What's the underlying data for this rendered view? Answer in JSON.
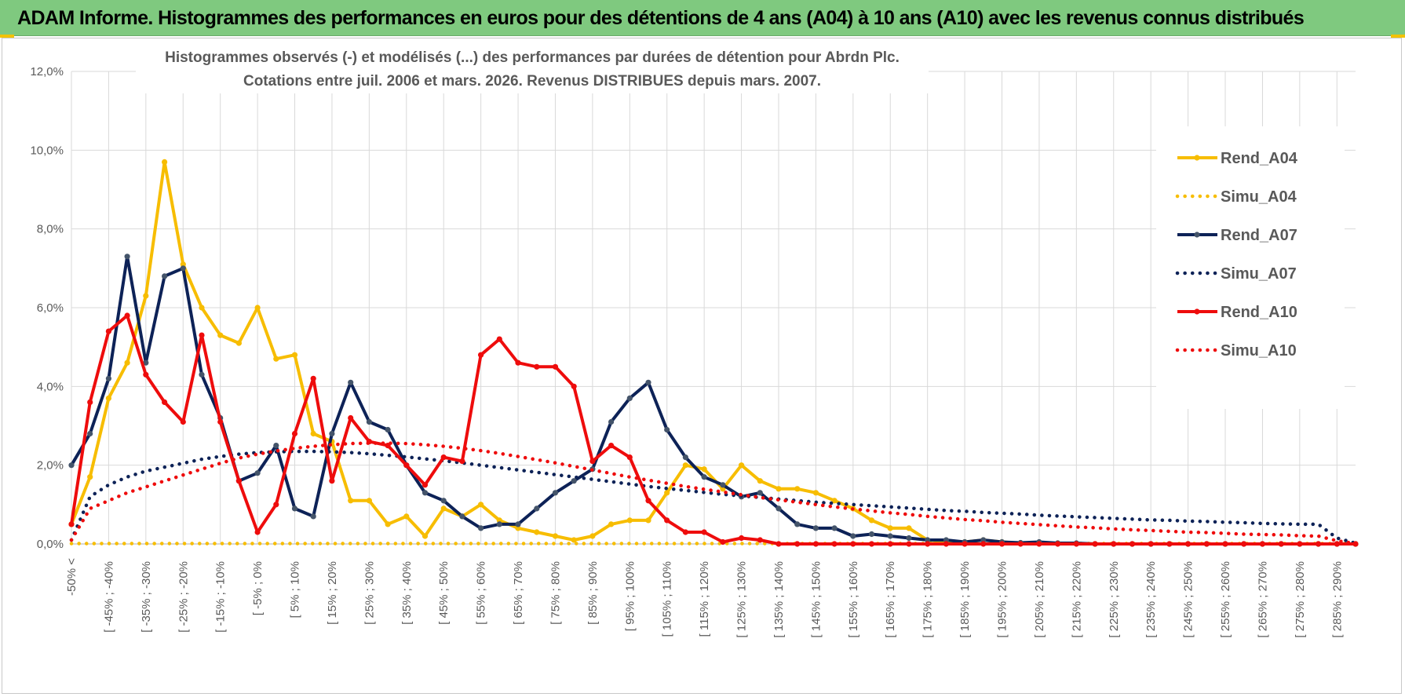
{
  "banner": {
    "title": "ADAM Informe. Histogrammes des performances en euros pour des détentions de 4 ans (A04) à 10 ans (A10) avec les revenus connus distribués"
  },
  "colors": {
    "banner_bg": "#7fc97f",
    "yellow": "#f7bd00",
    "navy": "#0d2257",
    "red": "#ee0c0c",
    "grid": "#d9d9d9",
    "label": "#595959"
  },
  "chart_data": {
    "type": "line",
    "title_lines": [
      "Histogrammes observés (-) et modélisés (...) des performances par durées de détention pour Abrdn Plc.",
      "Cotations entre juil. 2006 et mars. 2026. Revenus DISTRIBUES depuis mars. 2007."
    ],
    "xlabel": "",
    "ylabel": "",
    "ylim": [
      0,
      0.12
    ],
    "y_ticks": [
      "0,0%",
      "2,0%",
      "4,0%",
      "6,0%",
      "8,0%",
      "10,0%",
      "12,0%"
    ],
    "x_tick_labels": [
      "-50% <",
      "[ -45% ; -40%",
      "[ -35% ; -30%",
      "[ -25% ; -20%",
      "[ -15% ; -10%",
      "[ -5% ; 0%",
      "[ 5% ; 10%",
      "[ 15% ; 20%",
      "[ 25% ; 30%",
      "[ 35% ; 40%",
      "[ 45% ; 50%",
      "[ 55% ; 60%",
      "[ 65% ; 70%",
      "[ 75% ; 80%",
      "[ 85% ; 90%",
      "[ 95% ; 100%",
      "[ 105% ; 110%",
      "[ 115% ; 120%",
      "[ 125% ; 130%",
      "[ 135% ; 140%",
      "[ 145% ; 150%",
      "[ 155% ; 160%",
      "[ 165% ; 170%",
      "[ 175% ; 180%",
      "[ 185% ; 190%",
      "[ 195% ; 200%",
      "[ 205% ; 210%",
      "[ 215% ; 220%",
      "[ 225% ; 230%",
      "[ 235% ; 240%",
      "[ 245% ; 250%",
      "[ 255% ; 260%",
      "[ 265% ; 270%",
      "[ 275% ; 280%",
      "[ 285% ; 290%"
    ],
    "category_count": 70,
    "legend_position": "right",
    "series": [
      {
        "name": "Rend_A04",
        "style": "solid",
        "color": "#f7bd00",
        "values": [
          0.005,
          0.017,
          0.037,
          0.046,
          0.063,
          0.097,
          0.071,
          0.06,
          0.053,
          0.051,
          0.06,
          0.047,
          0.048,
          0.028,
          0.026,
          0.011,
          0.011,
          0.005,
          0.007,
          0.002,
          0.009,
          0.007,
          0.01,
          0.006,
          0.004,
          0.003,
          0.002,
          0.001,
          0.002,
          0.005,
          0.006,
          0.006,
          0.013,
          0.02,
          0.019,
          0.014,
          0.02,
          0.016,
          0.014,
          0.014,
          0.013,
          0.011,
          0.009,
          0.006,
          0.004,
          0.004,
          0.001,
          0.0005,
          0.0005,
          0.001,
          0.0005,
          0.0002,
          0.0002,
          0.0002,
          0.0001,
          0,
          0,
          0,
          0,
          0,
          0,
          0,
          0,
          0,
          0,
          0,
          0,
          0,
          0,
          0
        ]
      },
      {
        "name": "Simu_A04",
        "style": "dotted",
        "color": "#f7bd00",
        "values": [
          0.0001,
          0.0001,
          0.0001,
          0.0001,
          0.0001,
          0.0001,
          0.0001,
          0.0001,
          0.0001,
          0.0001,
          0.0001,
          0.0001,
          0.0001,
          0.0001,
          0.0001,
          0.0001,
          0.0001,
          0.0001,
          0.0001,
          0.0001,
          0.0001,
          0.0001,
          0.0001,
          0.0001,
          0.0001,
          0.0001,
          0.0001,
          0.0001,
          0.0001,
          0.0001,
          0.0001,
          0.0001,
          0.0001,
          0.0001,
          0.0001,
          0.0001,
          0.0001,
          0.0001,
          0.0001,
          0.0001,
          0.0001,
          0.0001,
          0.0001,
          0.0001,
          0.0001,
          0.0001,
          0.0001,
          0.0001,
          0.0001,
          0.0001,
          0.0001,
          0.0001,
          0.0001,
          0.0001,
          0.0001,
          0.0001,
          0.0001,
          0.0001,
          0.0001,
          0.0001,
          0.0001,
          0.0001,
          0.0001,
          0.0001,
          0.0001,
          0.0001,
          0.0001,
          0.0001,
          0.0001,
          0.0001
        ]
      },
      {
        "name": "Rend_A07",
        "style": "solid",
        "color": "#0d2257",
        "values": [
          0.02,
          0.028,
          0.042,
          0.073,
          0.046,
          0.068,
          0.07,
          0.043,
          0.032,
          0.016,
          0.018,
          0.025,
          0.009,
          0.007,
          0.028,
          0.041,
          0.031,
          0.029,
          0.02,
          0.013,
          0.011,
          0.007,
          0.004,
          0.005,
          0.005,
          0.009,
          0.013,
          0.016,
          0.019,
          0.031,
          0.037,
          0.041,
          0.029,
          0.022,
          0.017,
          0.015,
          0.012,
          0.013,
          0.009,
          0.005,
          0.004,
          0.004,
          0.002,
          0.0025,
          0.002,
          0.0015,
          0.001,
          0.001,
          0.0005,
          0.001,
          0.0005,
          0.0003,
          0.0005,
          0.0002,
          0.0002,
          0,
          0,
          0,
          0,
          0,
          0,
          0,
          0,
          0,
          0,
          0,
          0,
          0,
          0,
          0
        ]
      },
      {
        "name": "Simu_A07",
        "style": "dotted",
        "color": "#0d2257",
        "values": [
          0.001,
          0.012,
          0.015,
          0.017,
          0.0185,
          0.0195,
          0.0205,
          0.0215,
          0.0222,
          0.0228,
          0.0232,
          0.0234,
          0.0235,
          0.0235,
          0.0234,
          0.0232,
          0.0229,
          0.0225,
          0.0221,
          0.0216,
          0.0211,
          0.0206,
          0.02,
          0.0194,
          0.0188,
          0.0182,
          0.0176,
          0.017,
          0.0164,
          0.0158,
          0.0152,
          0.0146,
          0.0141,
          0.0136,
          0.0131,
          0.0126,
          0.0122,
          0.0118,
          0.0114,
          0.011,
          0.0106,
          0.0103,
          0.01,
          0.0097,
          0.0094,
          0.0091,
          0.0088,
          0.0085,
          0.0083,
          0.008,
          0.0078,
          0.0076,
          0.0073,
          0.0071,
          0.0069,
          0.0067,
          0.0065,
          0.0063,
          0.0061,
          0.006,
          0.0058,
          0.0057,
          0.0055,
          0.0054,
          0.0052,
          0.0051,
          0.005,
          0.005,
          0.0015,
          0.0002
        ]
      },
      {
        "name": "Rend_A10",
        "style": "solid",
        "color": "#ee0c0c",
        "values": [
          0.005,
          0.036,
          0.054,
          0.058,
          0.043,
          0.036,
          0.031,
          0.053,
          0.031,
          0.016,
          0.003,
          0.01,
          0.028,
          0.042,
          0.016,
          0.032,
          0.026,
          0.025,
          0.02,
          0.015,
          0.022,
          0.021,
          0.048,
          0.052,
          0.046,
          0.045,
          0.045,
          0.04,
          0.021,
          0.025,
          0.022,
          0.011,
          0.006,
          0.003,
          0.003,
          0.0005,
          0.0015,
          0.001,
          0,
          0,
          0,
          0,
          0,
          0,
          0,
          0,
          0,
          0,
          0,
          0,
          0,
          0,
          0,
          0,
          0,
          0,
          0,
          0,
          0,
          0,
          0,
          0,
          0,
          0,
          0,
          0,
          0,
          0,
          0,
          0
        ]
      },
      {
        "name": "Simu_A10",
        "style": "dotted",
        "color": "#ee0c0c",
        "values": [
          0.001,
          0.009,
          0.011,
          0.013,
          0.0145,
          0.016,
          0.0175,
          0.019,
          0.0205,
          0.0218,
          0.0228,
          0.0236,
          0.0243,
          0.0248,
          0.0252,
          0.0255,
          0.0256,
          0.0256,
          0.0255,
          0.0252,
          0.0248,
          0.0243,
          0.0237,
          0.023,
          0.0222,
          0.0214,
          0.0206,
          0.0197,
          0.0188,
          0.0179,
          0.017,
          0.0162,
          0.0154,
          0.0146,
          0.0139,
          0.0132,
          0.0125,
          0.0118,
          0.0112,
          0.0106,
          0.01,
          0.0094,
          0.0089,
          0.0084,
          0.0079,
          0.0075,
          0.007,
          0.0066,
          0.0062,
          0.0059,
          0.0055,
          0.0052,
          0.0049,
          0.0046,
          0.0043,
          0.0041,
          0.0038,
          0.0036,
          0.0034,
          0.0032,
          0.003,
          0.0029,
          0.0027,
          0.0025,
          0.0024,
          0.0023,
          0.0021,
          0.002,
          0.0008,
          0.0001
        ]
      }
    ]
  }
}
